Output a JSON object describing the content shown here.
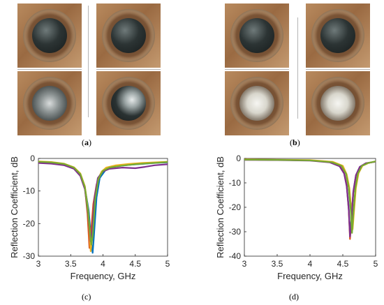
{
  "panels": {
    "a": {
      "label_open": "(",
      "letter": "a",
      "label_close": ")"
    },
    "b": {
      "label_open": "(",
      "letter": "b",
      "label_close": ")"
    },
    "c": {
      "label": "(c)"
    },
    "d": {
      "label": "(d)"
    }
  },
  "chart_data": [
    {
      "type": "line",
      "panel": "c",
      "title": "",
      "xlabel": "Frequency, GHz",
      "ylabel": "Reflection Coefficient, dB",
      "xlim": [
        3,
        5
      ],
      "ylim": [
        -30,
        0
      ],
      "xticks": [
        "3",
        "3.5",
        "4",
        "4.5",
        "5"
      ],
      "yticks": [
        "0",
        "-10",
        "-20",
        "-30"
      ],
      "grid": false,
      "legend": "none",
      "series": [
        {
          "color": "#0072bd",
          "values": [
            [
              3,
              -1.2
            ],
            [
              3.2,
              -1.4
            ],
            [
              3.4,
              -1.9
            ],
            [
              3.55,
              -3
            ],
            [
              3.65,
              -5
            ],
            [
              3.72,
              -9
            ],
            [
              3.78,
              -16
            ],
            [
              3.82,
              -26
            ],
            [
              3.84,
              -29
            ],
            [
              3.86,
              -24
            ],
            [
              3.9,
              -12
            ],
            [
              3.95,
              -6
            ],
            [
              4.05,
              -3.3
            ],
            [
              4.2,
              -2.4
            ],
            [
              4.4,
              -2
            ],
            [
              4.6,
              -1.7
            ],
            [
              4.8,
              -1.4
            ],
            [
              5,
              -1.2
            ]
          ]
        },
        {
          "color": "#d95319",
          "values": [
            [
              3,
              -1.1
            ],
            [
              3.2,
              -1.3
            ],
            [
              3.4,
              -1.8
            ],
            [
              3.55,
              -2.9
            ],
            [
              3.65,
              -5
            ],
            [
              3.72,
              -9
            ],
            [
              3.76,
              -17
            ],
            [
              3.79,
              -27.5
            ],
            [
              3.81,
              -24
            ],
            [
              3.85,
              -14
            ],
            [
              3.9,
              -8
            ],
            [
              3.97,
              -4.5
            ],
            [
              4.05,
              -3
            ],
            [
              4.2,
              -2.3
            ],
            [
              4.4,
              -1.9
            ],
            [
              4.6,
              -1.6
            ],
            [
              4.8,
              -1.3
            ],
            [
              5,
              -1.1
            ]
          ]
        },
        {
          "color": "#edb120",
          "values": [
            [
              3,
              -0.9
            ],
            [
              3.2,
              -1.1
            ],
            [
              3.4,
              -1.6
            ],
            [
              3.55,
              -2.7
            ],
            [
              3.65,
              -4.6
            ],
            [
              3.72,
              -8.5
            ],
            [
              3.77,
              -16
            ],
            [
              3.81,
              -28.5
            ],
            [
              3.83,
              -25
            ],
            [
              3.87,
              -13
            ],
            [
              3.92,
              -6.5
            ],
            [
              3.98,
              -4
            ],
            [
              4.05,
              -2.8
            ],
            [
              4.2,
              -2.1
            ],
            [
              4.4,
              -1.7
            ],
            [
              4.6,
              -1.4
            ],
            [
              4.8,
              -1.2
            ],
            [
              5,
              -1
            ]
          ]
        },
        {
          "color": "#7e2f8e",
          "values": [
            [
              3,
              -1.4
            ],
            [
              3.2,
              -1.6
            ],
            [
              3.4,
              -2.1
            ],
            [
              3.55,
              -3.2
            ],
            [
              3.65,
              -5.4
            ],
            [
              3.72,
              -9.5
            ],
            [
              3.77,
              -17
            ],
            [
              3.81,
              -25.5
            ],
            [
              3.83,
              -23
            ],
            [
              3.87,
              -12
            ],
            [
              3.92,
              -6
            ],
            [
              4,
              -4
            ],
            [
              4.1,
              -3.2
            ],
            [
              4.3,
              -2.8
            ],
            [
              4.5,
              -3
            ],
            [
              4.65,
              -2.6
            ],
            [
              4.8,
              -2.1
            ],
            [
              5,
              -1.8
            ]
          ]
        },
        {
          "color": "#77ac30",
          "values": [
            [
              3,
              -1
            ],
            [
              3.2,
              -1.2
            ],
            [
              3.4,
              -1.7
            ],
            [
              3.55,
              -2.8
            ],
            [
              3.65,
              -4.8
            ],
            [
              3.72,
              -8.8
            ],
            [
              3.77,
              -16.5
            ],
            [
              3.82,
              -26.5
            ],
            [
              3.84,
              -24
            ],
            [
              3.88,
              -12.5
            ],
            [
              3.93,
              -6.2
            ],
            [
              4,
              -3.8
            ],
            [
              4.1,
              -2.8
            ],
            [
              4.3,
              -2.2
            ],
            [
              4.5,
              -1.8
            ],
            [
              4.7,
              -1.5
            ],
            [
              4.85,
              -1.3
            ],
            [
              5,
              -1.1
            ]
          ]
        }
      ]
    },
    {
      "type": "line",
      "panel": "d",
      "title": "",
      "xlabel": "Frequency, GHz",
      "ylabel": "Reflection Coefficient, dB",
      "xlim": [
        3,
        5
      ],
      "ylim": [
        -40,
        0
      ],
      "xticks": [
        "3",
        "3.5",
        "4",
        "4.5",
        "5"
      ],
      "yticks": [
        "0",
        "-10",
        "-20",
        "-30",
        "-40"
      ],
      "grid": false,
      "legend": "none",
      "series": [
        {
          "color": "#0072bd",
          "values": [
            [
              3,
              -0.5
            ],
            [
              3.5,
              -0.6
            ],
            [
              4,
              -0.8
            ],
            [
              4.3,
              -1.5
            ],
            [
              4.45,
              -3
            ],
            [
              4.52,
              -6
            ],
            [
              4.56,
              -11
            ],
            [
              4.59,
              -20
            ],
            [
              4.61,
              -31
            ],
            [
              4.63,
              -25
            ],
            [
              4.66,
              -14
            ],
            [
              4.7,
              -7
            ],
            [
              4.76,
              -3.5
            ],
            [
              4.85,
              -2
            ],
            [
              5,
              -1.3
            ]
          ]
        },
        {
          "color": "#d95319",
          "values": [
            [
              3,
              -0.5
            ],
            [
              3.5,
              -0.6
            ],
            [
              4,
              -0.8
            ],
            [
              4.3,
              -1.5
            ],
            [
              4.45,
              -3
            ],
            [
              4.52,
              -6
            ],
            [
              4.56,
              -11
            ],
            [
              4.59,
              -21
            ],
            [
              4.61,
              -33
            ],
            [
              4.63,
              -26
            ],
            [
              4.66,
              -14
            ],
            [
              4.7,
              -7
            ],
            [
              4.76,
              -3.5
            ],
            [
              4.85,
              -2
            ],
            [
              5,
              -1.3
            ]
          ]
        },
        {
          "color": "#edb120",
          "values": [
            [
              3,
              -0.4
            ],
            [
              3.5,
              -0.5
            ],
            [
              4,
              -0.7
            ],
            [
              4.35,
              -1.4
            ],
            [
              4.5,
              -3
            ],
            [
              4.56,
              -6.5
            ],
            [
              4.6,
              -12
            ],
            [
              4.63,
              -21
            ],
            [
              4.65,
              -29
            ],
            [
              4.67,
              -22
            ],
            [
              4.7,
              -12
            ],
            [
              4.74,
              -6
            ],
            [
              4.8,
              -3
            ],
            [
              4.9,
              -1.8
            ],
            [
              5,
              -1.2
            ]
          ]
        },
        {
          "color": "#7e2f8e",
          "values": [
            [
              3,
              -0.6
            ],
            [
              3.5,
              -0.7
            ],
            [
              4,
              -0.9
            ],
            [
              4.3,
              -1.6
            ],
            [
              4.45,
              -3.2
            ],
            [
              4.52,
              -6.2
            ],
            [
              4.56,
              -11.5
            ],
            [
              4.59,
              -21
            ],
            [
              4.61,
              -32
            ],
            [
              4.63,
              -25.5
            ],
            [
              4.66,
              -13.5
            ],
            [
              4.7,
              -6.8
            ],
            [
              4.76,
              -3.4
            ],
            [
              4.85,
              -2
            ],
            [
              5,
              -1.3
            ]
          ]
        },
        {
          "color": "#77ac30",
          "values": [
            [
              3,
              -0.5
            ],
            [
              3.5,
              -0.6
            ],
            [
              4,
              -0.8
            ],
            [
              4.33,
              -1.5
            ],
            [
              4.48,
              -3
            ],
            [
              4.55,
              -6.3
            ],
            [
              4.59,
              -12
            ],
            [
              4.62,
              -21
            ],
            [
              4.64,
              -30.5
            ],
            [
              4.66,
              -23
            ],
            [
              4.69,
              -12.5
            ],
            [
              4.73,
              -6.2
            ],
            [
              4.79,
              -3.1
            ],
            [
              4.88,
              -1.9
            ],
            [
              5,
              -1.2
            ]
          ]
        }
      ]
    }
  ]
}
